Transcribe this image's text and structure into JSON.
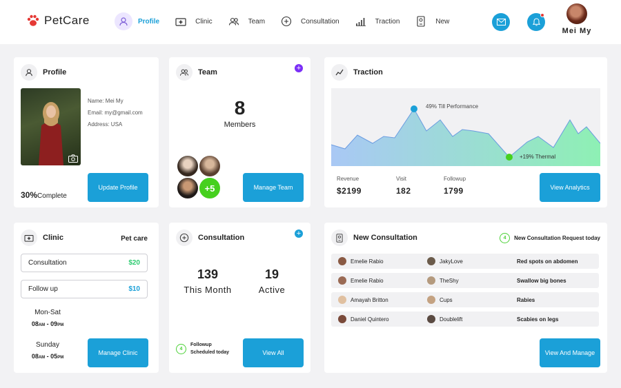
{
  "brand": {
    "name": "PetCare"
  },
  "nav": [
    {
      "label": "Profile",
      "icon": "user-icon",
      "active": true
    },
    {
      "label": "Clinic",
      "icon": "medical-kit-icon"
    },
    {
      "label": "Team",
      "icon": "team-icon"
    },
    {
      "label": "Consultation",
      "icon": "consultation-icon"
    },
    {
      "label": "Traction",
      "icon": "bar-chart-icon"
    },
    {
      "label": "New",
      "icon": "new-document-icon"
    }
  ],
  "user": {
    "name": "Mei My"
  },
  "profile": {
    "title": "Profile",
    "name_line": "Name: Mei My",
    "email_line": "Email: my@gmail.com",
    "address_line": "Address: USA",
    "complete_pct": "30%",
    "complete_label": "Complete",
    "update_button": "Update Profile"
  },
  "team": {
    "title": "Team",
    "count": "8",
    "count_label": "Members",
    "extra": "+5",
    "manage_button": "Manage Team"
  },
  "traction": {
    "title": "Traction",
    "peak_label": "49% Till Performance",
    "low_label": "+19% Thermal",
    "stats": [
      {
        "label": "Revenue",
        "value": "$2199"
      },
      {
        "label": "Visit",
        "value": "182"
      },
      {
        "label": "Followup",
        "value": "1799"
      }
    ],
    "view_button": "View Analytics"
  },
  "clinic": {
    "title": "Clinic",
    "subtitle": "Pet care",
    "services": [
      {
        "name": "Consultation",
        "price": "$20",
        "color": "#2ecc71"
      },
      {
        "name": "Follow up",
        "price": "$10",
        "color": "#1ba0d8"
      }
    ],
    "schedule": [
      {
        "days": "Mon-Sat",
        "from": "08",
        "from_ampm": "AM",
        "to": "09",
        "to_ampm": "PM"
      },
      {
        "days": "Sunday",
        "from": "08",
        "from_ampm": "AM",
        "to": "05",
        "to_ampm": "PM"
      }
    ],
    "manage_button": "Manage Clinic"
  },
  "consultation": {
    "title": "Consultation",
    "stats": [
      {
        "value": "139",
        "label": "This Month"
      },
      {
        "value": "19",
        "label": "Active"
      }
    ],
    "followup_count": "4",
    "followup_line1": "Followup",
    "followup_line2": "Scheduled today",
    "view_button": "View All"
  },
  "new_consultation": {
    "title": "New Consultation",
    "request_count": "4",
    "request_label": "New Consultation Request today",
    "rows": [
      {
        "owner": "Emelie Rabio",
        "pet": "JakyLove",
        "issue": "Red spots on abdomen"
      },
      {
        "owner": "Emelie Rabio",
        "pet": "TheShy",
        "issue": "Swallow big bones"
      },
      {
        "owner": "Amayah Britton",
        "pet": "Cups",
        "issue": "Rabies"
      },
      {
        "owner": "Daniel Quintero",
        "pet": "Doublelift",
        "issue": "Scabies on legs"
      }
    ],
    "view_button": "View And Manage"
  },
  "colors": {
    "accent": "#1ba0d8",
    "purple_plus": "#7b2ff7",
    "green": "#4cd137"
  }
}
